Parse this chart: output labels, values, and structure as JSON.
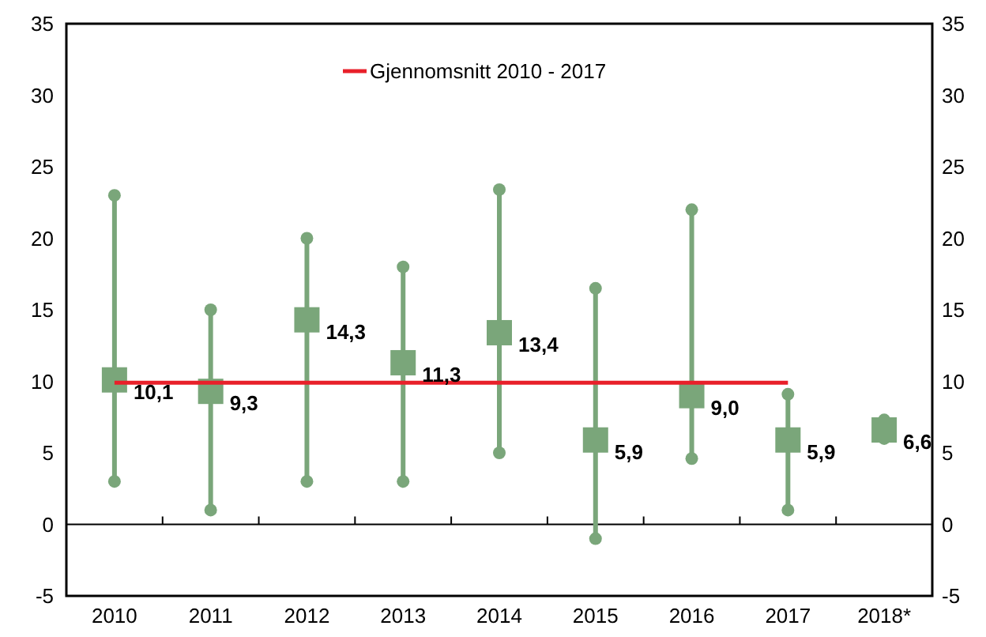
{
  "chart_data": {
    "type": "scatter",
    "categories": [
      "2010",
      "2011",
      "2012",
      "2013",
      "2014",
      "2015",
      "2016",
      "2017",
      "2018*"
    ],
    "series": [
      {
        "color": "#7aa67a",
        "marker": "square",
        "values": [
          10.1,
          9.3,
          14.3,
          11.3,
          13.4,
          5.9,
          9.0,
          5.9,
          6.6
        ],
        "errors": [
          [
            3,
            23
          ],
          [
            1,
            15
          ],
          [
            3,
            20
          ],
          [
            3,
            18
          ],
          [
            5,
            23.4
          ],
          [
            -1,
            16.5
          ],
          [
            4.6,
            22
          ],
          [
            1,
            9.1
          ],
          [
            6,
            7.3
          ]
        ],
        "value_labels": [
          "10,1",
          "9,3",
          "14,3",
          "11,3",
          "13,4",
          "5,9",
          "9,0",
          "5,9",
          "6,6"
        ]
      },
      {
        "type": "line",
        "name": "Gjennomsnitt 2010 - 2017",
        "color": "#e8202a",
        "values": [
          9.9,
          9.9,
          9.9,
          9.9,
          9.9,
          9.9,
          9.9,
          9.9,
          null
        ]
      }
    ],
    "ylim": [
      -5,
      35
    ],
    "yticks": [
      -5,
      0,
      5,
      10,
      15,
      20,
      25,
      30,
      35
    ],
    "y2lim": [
      -5,
      35
    ],
    "y2ticks": [
      -5,
      0,
      5,
      10,
      15,
      20,
      25,
      30,
      35
    ],
    "ref_lines": [
      {
        "axis": "y",
        "value": 0,
        "color": "#000000"
      }
    ],
    "legend": "top"
  }
}
